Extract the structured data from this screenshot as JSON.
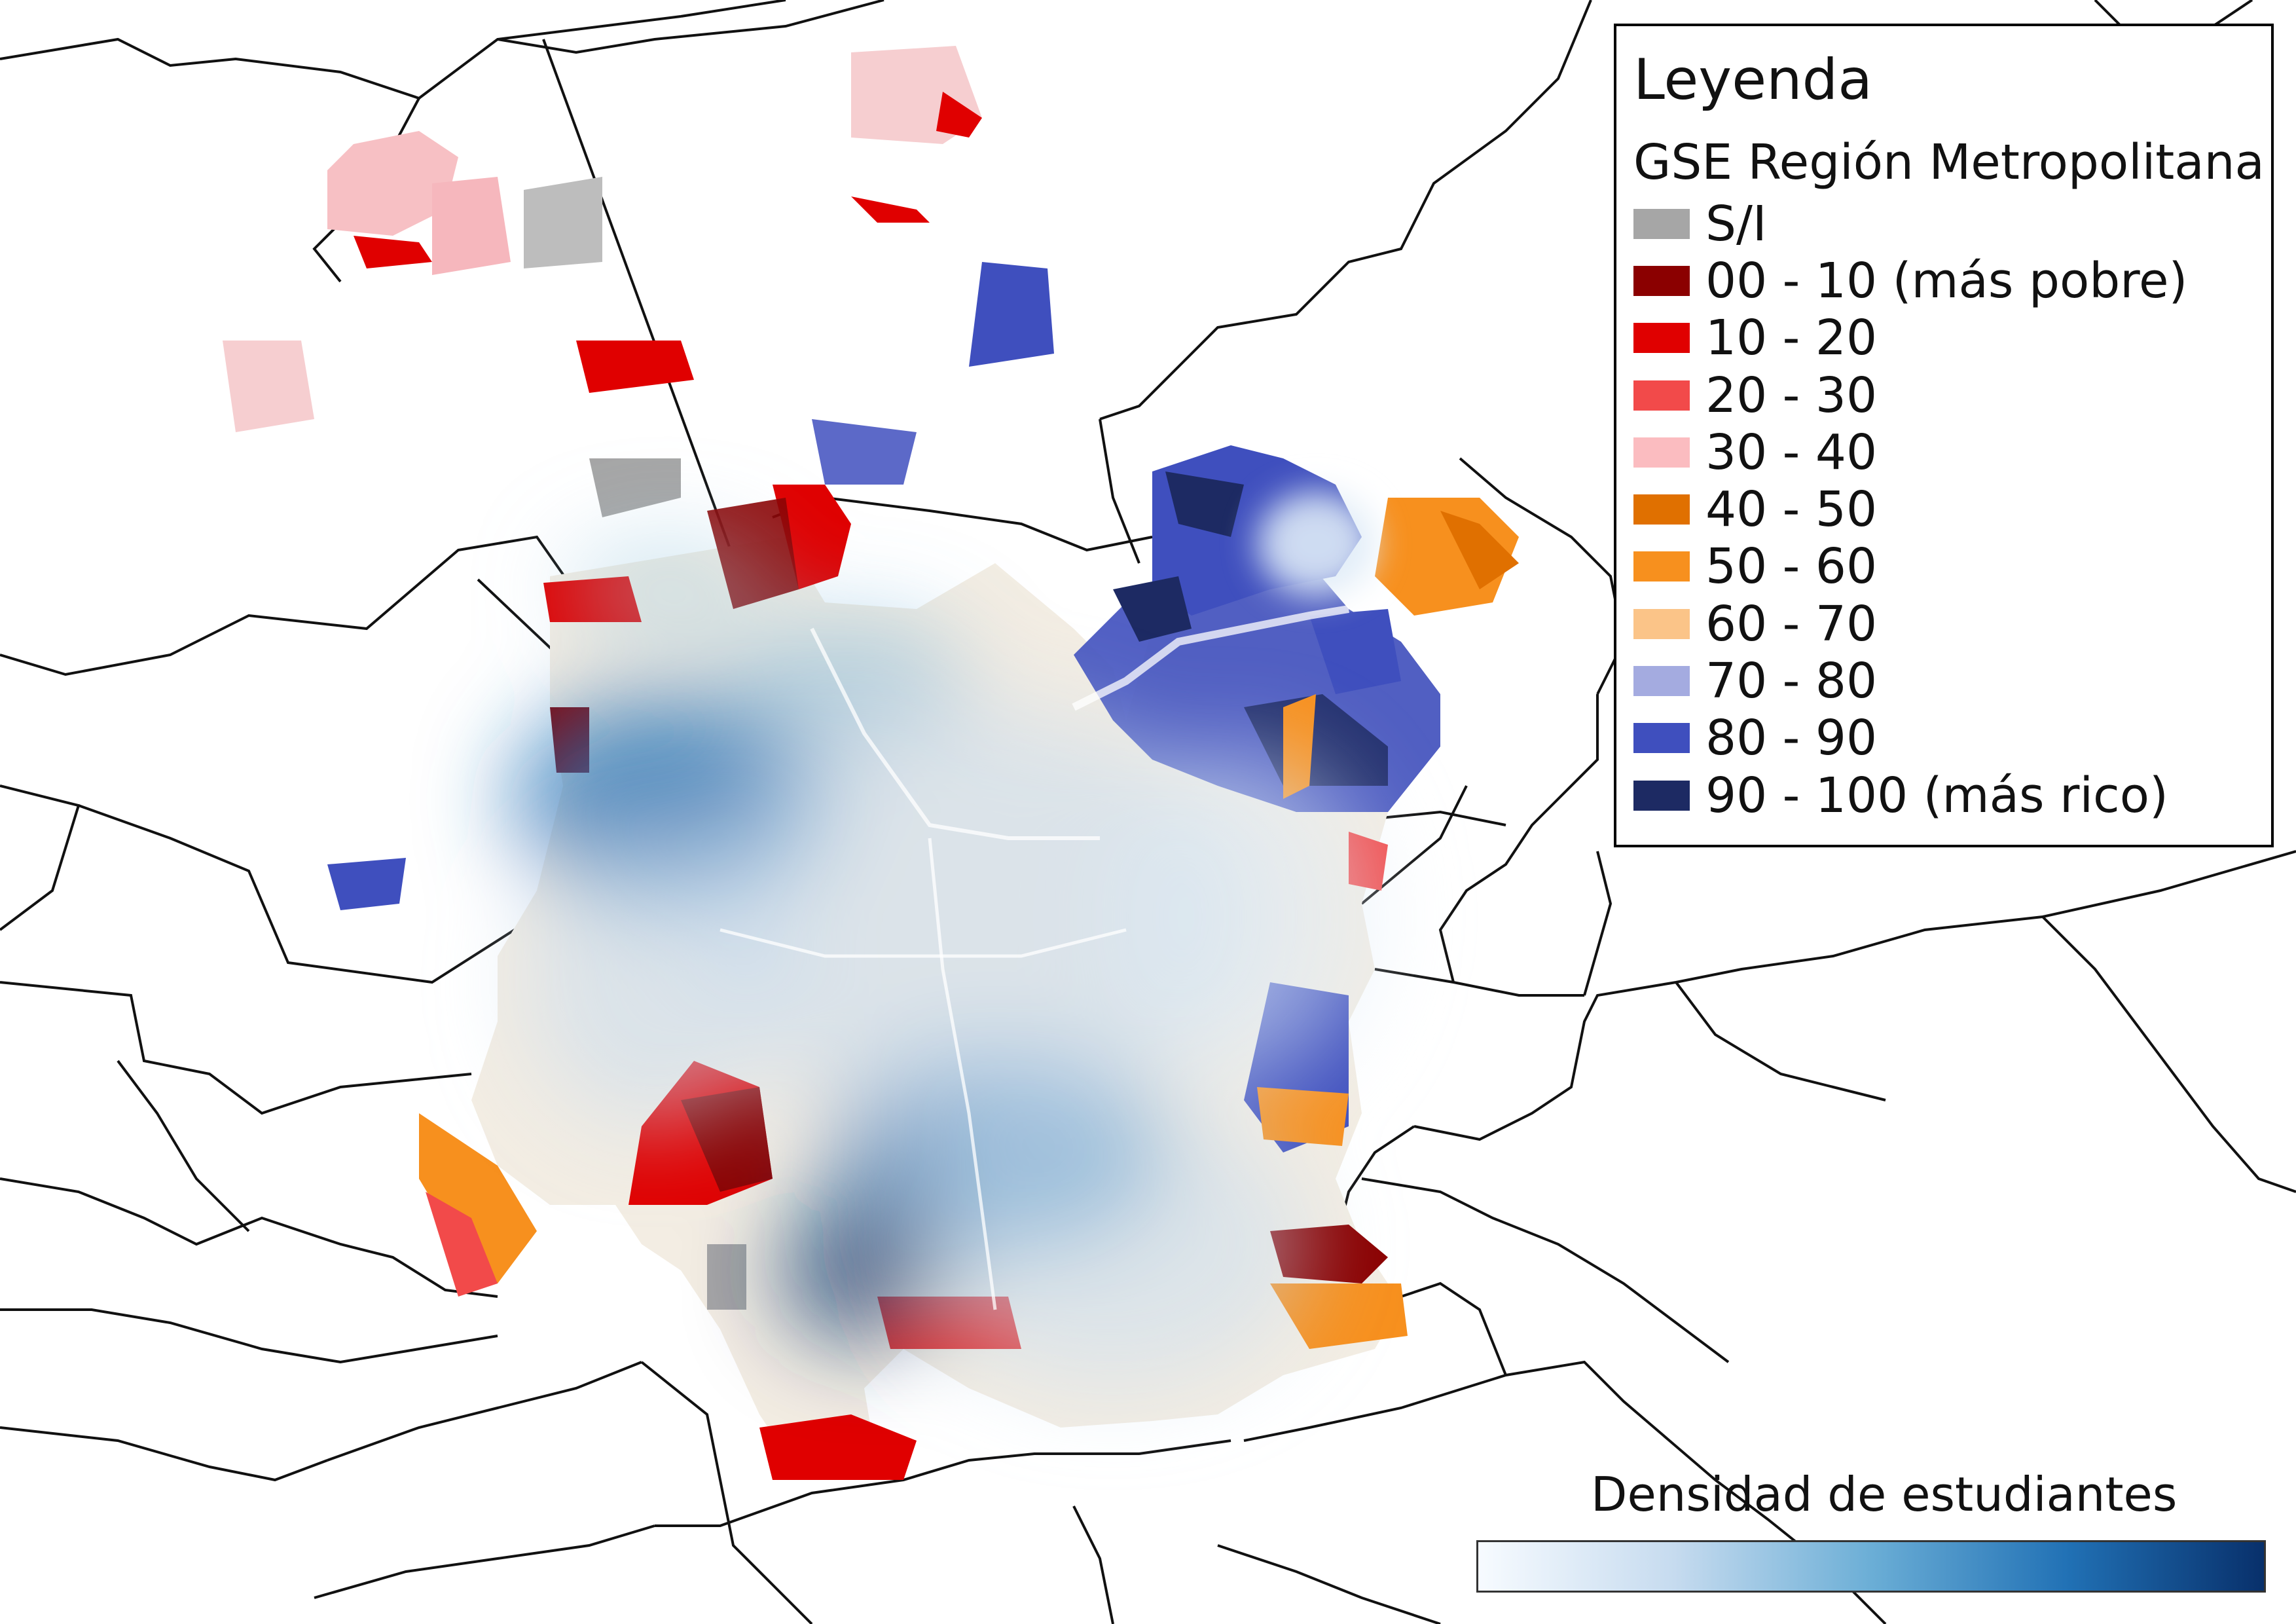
{
  "legend": {
    "title": "Leyenda",
    "subtitle": "GSE Región Metropolitana",
    "items": [
      {
        "label": "S/I",
        "color": "#a6a6a6"
      },
      {
        "label": "00 - 10 (más pobre)",
        "color": "#8b0000"
      },
      {
        "label": "10 - 20",
        "color": "#e00000"
      },
      {
        "label": "20 - 30",
        "color": "#f24a4a"
      },
      {
        "label": "30 - 40",
        "color": "#fbbcc0"
      },
      {
        "label": "40 - 50",
        "color": "#e07000"
      },
      {
        "label": "50 - 60",
        "color": "#f7901e"
      },
      {
        "label": "60 - 70",
        "color": "#fbc488"
      },
      {
        "label": "70 - 80",
        "color": "#a4abe0"
      },
      {
        "label": "80 - 90",
        "color": "#3f4fbe"
      },
      {
        "label": "90 - 100 (más rico)",
        "color": "#1d2a63"
      }
    ]
  },
  "density": {
    "title": "Densidad de estudiantes",
    "gradient": [
      "#f7fbff",
      "#c6dbef",
      "#6baed6",
      "#2171b5",
      "#08306b"
    ]
  }
}
